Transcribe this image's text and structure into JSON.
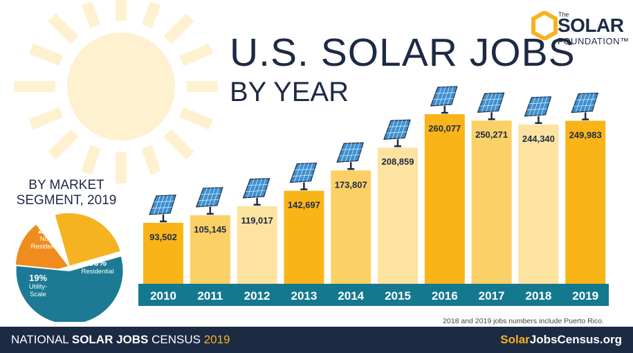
{
  "title": {
    "line1": "U.S. SOLAR JOBS",
    "line2": "BY YEAR"
  },
  "logo": {
    "the": "The",
    "solar": "SOLAR",
    "foundation": "FOUNDATION™"
  },
  "segment": {
    "title_line1": "BY MARKET",
    "title_line2": "SEGMENT, 2019",
    "slices": [
      {
        "pct": "25%",
        "label": "Non-Residential",
        "value": 25,
        "color": "#f5b321"
      },
      {
        "pct": "19%",
        "label": "Utility-Scale",
        "value": 19,
        "color": "#f08c1e"
      },
      {
        "pct": "56%",
        "label": "Residential",
        "value": 56,
        "color": "#1c7a94"
      }
    ]
  },
  "chart_data": {
    "type": "bar",
    "categories": [
      "2010",
      "2011",
      "2012",
      "2013",
      "2014",
      "2015",
      "2016",
      "2017",
      "2018",
      "2019"
    ],
    "values": [
      93502,
      105145,
      119017,
      142697,
      173807,
      208859,
      260077,
      250271,
      244340,
      249983
    ],
    "value_labels": [
      "93,502",
      "105,145",
      "119,017",
      "142,697",
      "173,807",
      "208,859",
      "260,077",
      "250,271",
      "244,340",
      "249,983"
    ],
    "bar_colors": [
      "#f9b418",
      "#fbd066",
      "#fde3a0",
      "#f9b418",
      "#fbd066",
      "#fde3a0",
      "#f9b418",
      "#fbd066",
      "#fde3a0",
      "#f9b418"
    ],
    "axis_color": "#14788f"
  },
  "note": "2018 and 2019 jobs numbers include Puerto Rico.",
  "footer": {
    "left_a": "NATIONAL ",
    "left_b": "SOLAR JOBS",
    "left_c": " CENSUS ",
    "left_year": "2019",
    "right_a": "Solar",
    "right_b": "JobsCensus",
    "right_c": ".org"
  }
}
